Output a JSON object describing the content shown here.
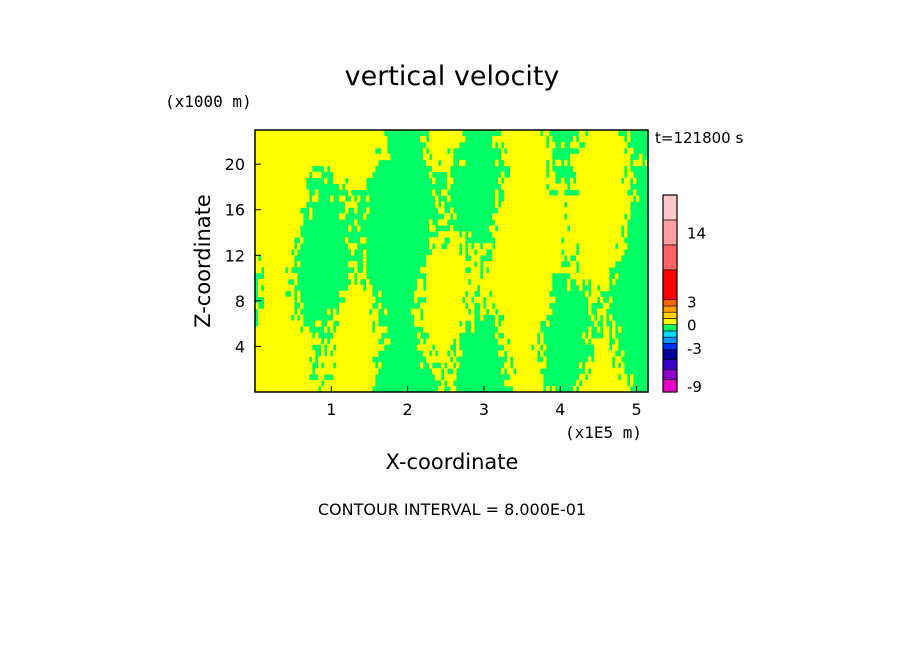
{
  "chart_data": {
    "type": "heatmap",
    "title": "vertical velocity",
    "xlabel": "X-coordinate",
    "ylabel": "Z-coordinate",
    "x_unit": "(x1E5 m)",
    "y_unit": "(x1000 m)",
    "time_label": "t=121800 s",
    "footer": "CONTOUR INTERVAL = 8.000E-01",
    "xlim": [
      0,
      5.15
    ],
    "ylim": [
      0,
      23
    ],
    "x_ticks": [
      1,
      2,
      3,
      4,
      5
    ],
    "x_tick_labels": [
      "1",
      "2",
      "3",
      "4",
      "5"
    ],
    "y_ticks": [
      4,
      8,
      12,
      16,
      20
    ],
    "y_tick_labels": [
      "4",
      "8",
      "12",
      "16",
      "20"
    ],
    "colorbar": {
      "labels": [
        {
          "value": 14,
          "text": "14"
        },
        {
          "value": 3,
          "text": "3"
        },
        {
          "value": 0,
          "text": "0"
        },
        {
          "value": -3,
          "text": "-3"
        },
        {
          "value": -9,
          "text": "-9"
        }
      ],
      "bands": [
        {
          "from": -10.0,
          "to": -8.0,
          "color": "#e600c8"
        },
        {
          "from": -8.0,
          "to": -6.4,
          "color": "#8c00c8"
        },
        {
          "from": -6.4,
          "to": -4.8,
          "color": "#3c00c8"
        },
        {
          "from": -4.8,
          "to": -3.2,
          "color": "#000096"
        },
        {
          "from": -3.2,
          "to": -2.4,
          "color": "#0032ff"
        },
        {
          "from": -2.4,
          "to": -1.6,
          "color": "#0096ff"
        },
        {
          "from": -1.6,
          "to": -0.8,
          "color": "#00dcff"
        },
        {
          "from": -0.8,
          "to": 0.0,
          "color": "#00ff64"
        },
        {
          "from": 0.0,
          "to": 0.8,
          "color": "#ffff00"
        },
        {
          "from": 0.8,
          "to": 1.6,
          "color": "#ffd200"
        },
        {
          "from": 1.6,
          "to": 2.4,
          "color": "#ffa000"
        },
        {
          "from": 2.4,
          "to": 3.2,
          "color": "#ff6400"
        },
        {
          "from": 3.2,
          "to": 8.0,
          "color": "#ff0000"
        },
        {
          "from": 8.0,
          "to": 12.0,
          "color": "#ff6464"
        },
        {
          "from": 12.0,
          "to": 16.0,
          "color": "#ffa0a0"
        },
        {
          "from": 16.0,
          "to": 20.0,
          "color": "#ffc8c8"
        }
      ]
    },
    "field_colors": {
      "negative": "#00ff64",
      "positive": "#ffff00"
    }
  }
}
